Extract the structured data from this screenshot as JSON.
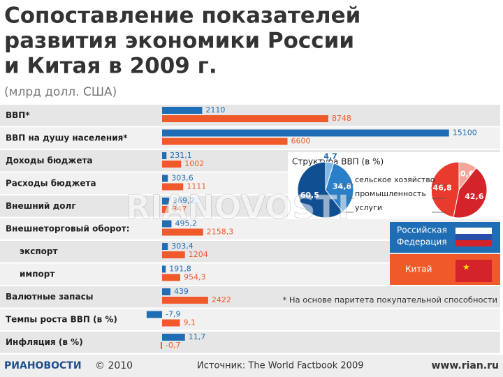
{
  "chart_data": [
    {
      "type": "bar",
      "title": "Сопоставление показателей развития экономики России и Китая в 2009 г.",
      "subtitle": "(млрд долл. США)",
      "categories": [
        "ВВП*",
        "ВВП на душу населения*",
        "Доходы бюджета",
        "Расходы бюджета",
        "Внешний долг",
        "Внешнеторговый оборот:",
        "экспорт",
        "импорт",
        "Валютные запасы",
        "Темпы роста ВВП (в %)",
        "Инфляция (в %)"
      ],
      "series": [
        {
          "name": "Российская Федерация",
          "color": "#1f6db5",
          "values": [
            2110,
            15100,
            231.1,
            303.6,
            369.2,
            495.2,
            303.4,
            191.8,
            439,
            -7.9,
            11.7
          ],
          "value_labels": [
            "2110",
            "15100",
            "231,1",
            "303,6",
            "369,2",
            "495,2",
            "303,4",
            "191,8",
            "439",
            "-7,9",
            "11,7"
          ]
        },
        {
          "name": "Китай",
          "color": "#f05a2a",
          "values": [
            8748,
            6600,
            1002,
            1111,
            347,
            2158.3,
            1204,
            954.3,
            2422,
            9.1,
            -0.7
          ],
          "value_labels": [
            "8748",
            "6600",
            "1002",
            "1111",
            "347",
            "2158,3",
            "1204",
            "954,3",
            "2422",
            "9,1",
            "-0,7"
          ]
        }
      ],
      "footnote": "* На основе паритета покупательной способности"
    },
    {
      "type": "pie",
      "title": "Структура ВВП (в %)",
      "categories": [
        "сельское хозяйство",
        "промышленность",
        "услуги"
      ],
      "series": [
        {
          "colors": [
            "#7fb8e6",
            "#2a80c8",
            "#0f4f92"
          ],
          "values": [
            4.7,
            34.8,
            60.5
          ],
          "value_labels": [
            "4,7",
            "34,8",
            "60,5"
          ]
        },
        {
          "colors": [
            "#f7a59a",
            "#d4232b",
            "#e83b2e"
          ],
          "values": [
            10.6,
            42.6,
            46.8
          ],
          "value_labels": [
            "10,6",
            "42,6",
            "46,8"
          ]
        }
      ]
    }
  ],
  "footer": {
    "logo": "РИАНОВОСТИ",
    "copyright": "© 2010",
    "source": "Источник: The World Factbook 2009",
    "site": "www.rian.ru"
  },
  "watermark": "RIANOVOSTI"
}
